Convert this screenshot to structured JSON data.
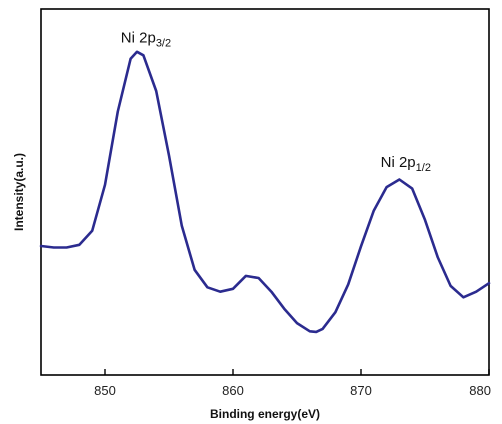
{
  "chart_data": {
    "type": "line",
    "title": "",
    "xlabel": "Binding energy(eV)",
    "ylabel": "Intensity(a.u.)",
    "xlim": [
      845,
      880
    ],
    "ylim": [
      0,
      1
    ],
    "x_ticks": [
      850,
      860,
      870,
      880
    ],
    "y_ticks": [],
    "grid": false,
    "series": [
      {
        "color": "#2b2b8f",
        "x": [
          845,
          846,
          847,
          848,
          849,
          850,
          851,
          852,
          852.5,
          853,
          854,
          855,
          856,
          857,
          858,
          859,
          860,
          861,
          862,
          863,
          864,
          865,
          866,
          866.5,
          867,
          868,
          869,
          870,
          871,
          872,
          873,
          874,
          875,
          876,
          877,
          878,
          879,
          880
        ],
        "y": [
          0.331,
          0.326,
          0.326,
          0.335,
          0.383,
          0.54,
          0.79,
          0.97,
          0.994,
          0.982,
          0.86,
          0.64,
          0.4,
          0.25,
          0.19,
          0.175,
          0.185,
          0.229,
          0.222,
          0.175,
          0.117,
          0.068,
          0.04,
          0.038,
          0.048,
          0.105,
          0.2,
          0.33,
          0.452,
          0.532,
          0.558,
          0.527,
          0.42,
          0.292,
          0.195,
          0.156,
          0.175,
          0.204
        ]
      }
    ],
    "annotations": [
      {
        "base": "Ni 2p",
        "sub": "3/2",
        "x": 853.2,
        "y": 1.025
      },
      {
        "base": "Ni 2p",
        "sub": "1/2",
        "x": 873.5,
        "y": 0.6
      }
    ]
  }
}
